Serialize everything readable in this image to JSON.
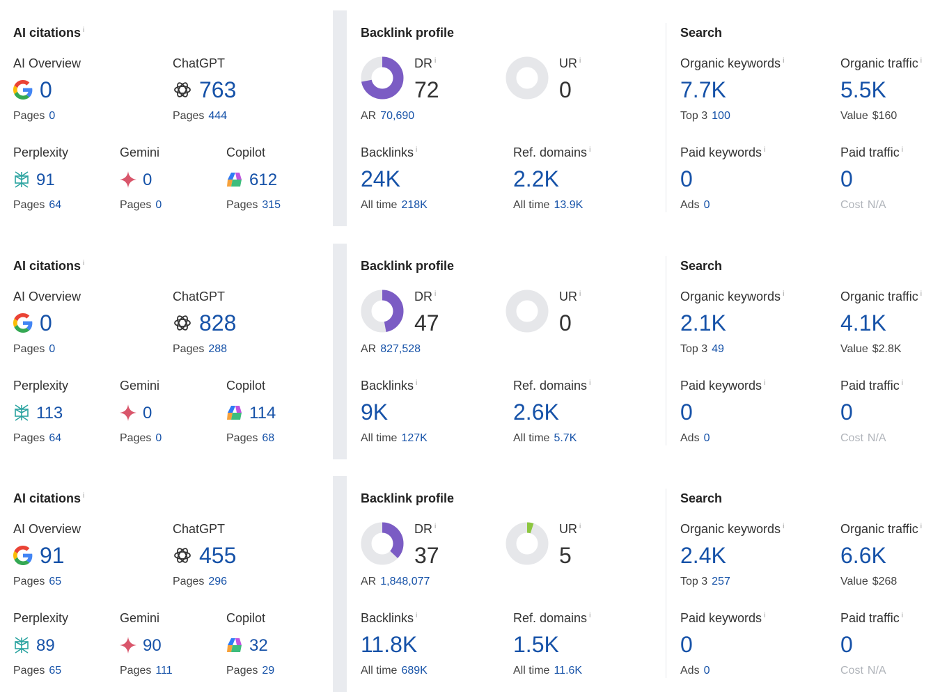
{
  "labels": {
    "ai_citations": "AI citations",
    "ai_overview": "AI Overview",
    "chatgpt": "ChatGPT",
    "perplexity": "Perplexity",
    "gemini": "Gemini",
    "copilot": "Copilot",
    "pages": "Pages",
    "backlink_profile": "Backlink profile",
    "dr": "DR",
    "ur": "UR",
    "ar": "AR",
    "backlinks": "Backlinks",
    "ref_domains": "Ref. domains",
    "all_time": "All time",
    "search": "Search",
    "organic_keywords": "Organic keywords",
    "organic_traffic": "Organic traffic",
    "top3": "Top 3",
    "value": "Value",
    "paid_keywords": "Paid keywords",
    "paid_traffic": "Paid traffic",
    "ads": "Ads",
    "cost": "Cost",
    "info_mark": "i"
  },
  "colors": {
    "accent": "#1652a8",
    "donut_dr": "#7b5cc4",
    "donut_ur": "#8cc63f",
    "donut_track": "#e6e7ea"
  },
  "icons": [
    "google-icon",
    "chatgpt-icon",
    "perplexity-icon",
    "gemini-icon",
    "copilot-icon",
    "info-icon"
  ],
  "rows": [
    {
      "ai": {
        "ai_overview": "0",
        "ai_overview_pages": "0",
        "chatgpt": "763",
        "chatgpt_pages": "444",
        "perplexity": "91",
        "perplexity_pages": "64",
        "gemini": "0",
        "gemini_pages": "0",
        "copilot": "612",
        "copilot_pages": "315"
      },
      "backlink": {
        "dr": "72",
        "dr_value": 72,
        "ar": "70,690",
        "ur": "0",
        "ur_value": 0,
        "backlinks": "24K",
        "backlinks_all_time": "218K",
        "ref_domains": "2.2K",
        "ref_domains_all_time": "13.9K"
      },
      "search": {
        "organic_keywords": "7.7K",
        "top3": "100",
        "organic_traffic": "5.5K",
        "value": "$160",
        "paid_keywords": "0",
        "ads": "0",
        "paid_traffic": "0",
        "cost": "N/A"
      }
    },
    {
      "ai": {
        "ai_overview": "0",
        "ai_overview_pages": "0",
        "chatgpt": "828",
        "chatgpt_pages": "288",
        "perplexity": "113",
        "perplexity_pages": "64",
        "gemini": "0",
        "gemini_pages": "0",
        "copilot": "114",
        "copilot_pages": "68"
      },
      "backlink": {
        "dr": "47",
        "dr_value": 47,
        "ar": "827,528",
        "ur": "0",
        "ur_value": 0,
        "backlinks": "9K",
        "backlinks_all_time": "127K",
        "ref_domains": "2.6K",
        "ref_domains_all_time": "5.7K"
      },
      "search": {
        "organic_keywords": "2.1K",
        "top3": "49",
        "organic_traffic": "4.1K",
        "value": "$2.8K",
        "paid_keywords": "0",
        "ads": "0",
        "paid_traffic": "0",
        "cost": "N/A"
      }
    },
    {
      "ai": {
        "ai_overview": "91",
        "ai_overview_pages": "65",
        "chatgpt": "455",
        "chatgpt_pages": "296",
        "perplexity": "89",
        "perplexity_pages": "65",
        "gemini": "90",
        "gemini_pages": "111",
        "copilot": "32",
        "copilot_pages": "29"
      },
      "backlink": {
        "dr": "37",
        "dr_value": 37,
        "ar": "1,848,077",
        "ur": "5",
        "ur_value": 5,
        "backlinks": "11.8K",
        "backlinks_all_time": "689K",
        "ref_domains": "1.5K",
        "ref_domains_all_time": "11.6K"
      },
      "search": {
        "organic_keywords": "2.4K",
        "top3": "257",
        "organic_traffic": "6.6K",
        "value": "$268",
        "paid_keywords": "0",
        "ads": "0",
        "paid_traffic": "0",
        "cost": "N/A"
      }
    }
  ]
}
